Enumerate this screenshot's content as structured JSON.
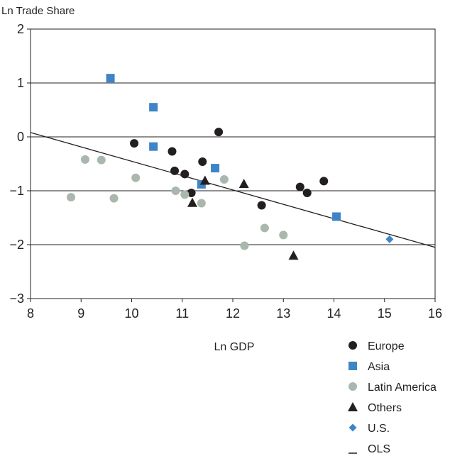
{
  "chart_data": {
    "type": "scatter",
    "ylabel": "Ln Trade Share",
    "xlabel": "Ln GDP",
    "xlim": [
      8,
      16
    ],
    "ylim": [
      -3,
      2
    ],
    "xticks": [
      8,
      9,
      10,
      11,
      12,
      13,
      14,
      15,
      16
    ],
    "yticks": [
      2,
      1,
      0,
      -1,
      -2,
      -3
    ],
    "ytick_labels": [
      "2",
      "1",
      "0",
      "−1",
      "−2",
      "−3"
    ],
    "grid": "horizontal",
    "legend_position": "bottom-right",
    "colors": {
      "Europe": "#231f20",
      "Asia": "#3d85c6",
      "Latin America": "#a9b7ad",
      "Others": "#231f20",
      "U.S.": "#3d85c6",
      "OLS": "#231f20"
    },
    "series": [
      {
        "name": "Europe",
        "marker": "circle",
        "points": [
          [
            10.05,
            -0.12
          ],
          [
            10.8,
            -0.27
          ],
          [
            10.85,
            -0.63
          ],
          [
            11.05,
            -0.69
          ],
          [
            11.4,
            -0.46
          ],
          [
            11.72,
            0.09
          ],
          [
            11.18,
            -1.04
          ],
          [
            12.57,
            -1.27
          ],
          [
            13.33,
            -0.93
          ],
          [
            13.47,
            -1.04
          ],
          [
            13.8,
            -0.82
          ]
        ]
      },
      {
        "name": "Asia",
        "marker": "square",
        "points": [
          [
            9.58,
            1.09
          ],
          [
            10.43,
            0.55
          ],
          [
            10.43,
            -0.18
          ],
          [
            11.65,
            -0.58
          ],
          [
            11.38,
            -0.88
          ],
          [
            14.05,
            -1.48
          ]
        ]
      },
      {
        "name": "Latin America",
        "marker": "circle",
        "points": [
          [
            8.8,
            -1.12
          ],
          [
            9.08,
            -0.42
          ],
          [
            9.4,
            -0.43
          ],
          [
            9.65,
            -1.14
          ],
          [
            10.08,
            -0.76
          ],
          [
            10.87,
            -1.0
          ],
          [
            11.05,
            -1.07
          ],
          [
            11.38,
            -1.23
          ],
          [
            11.83,
            -0.79
          ],
          [
            12.23,
            -2.02
          ],
          [
            12.63,
            -1.69
          ],
          [
            13.0,
            -1.82
          ]
        ]
      },
      {
        "name": "Others",
        "marker": "triangle",
        "points": [
          [
            11.2,
            -1.22
          ],
          [
            11.45,
            -0.81
          ],
          [
            12.22,
            -0.87
          ],
          [
            13.2,
            -2.2
          ]
        ]
      },
      {
        "name": "U.S.",
        "marker": "diamond",
        "points": [
          [
            15.1,
            -1.9
          ]
        ]
      }
    ],
    "ols_line": {
      "name": "OLS",
      "points": [
        [
          8,
          0.08
        ],
        [
          16,
          -2.05
        ]
      ]
    },
    "legend": [
      {
        "label": "Europe",
        "marker": "circle",
        "color": "#231f20"
      },
      {
        "label": "Asia",
        "marker": "square",
        "color": "#3d85c6"
      },
      {
        "label": "Latin America",
        "marker": "circle",
        "color": "#a9b7ad"
      },
      {
        "label": "Others",
        "marker": "triangle",
        "color": "#231f20"
      },
      {
        "label": "U.S.",
        "marker": "diamond",
        "color": "#3d85c6"
      },
      {
        "label": "OLS",
        "marker": "line",
        "color": "#231f20"
      }
    ]
  }
}
